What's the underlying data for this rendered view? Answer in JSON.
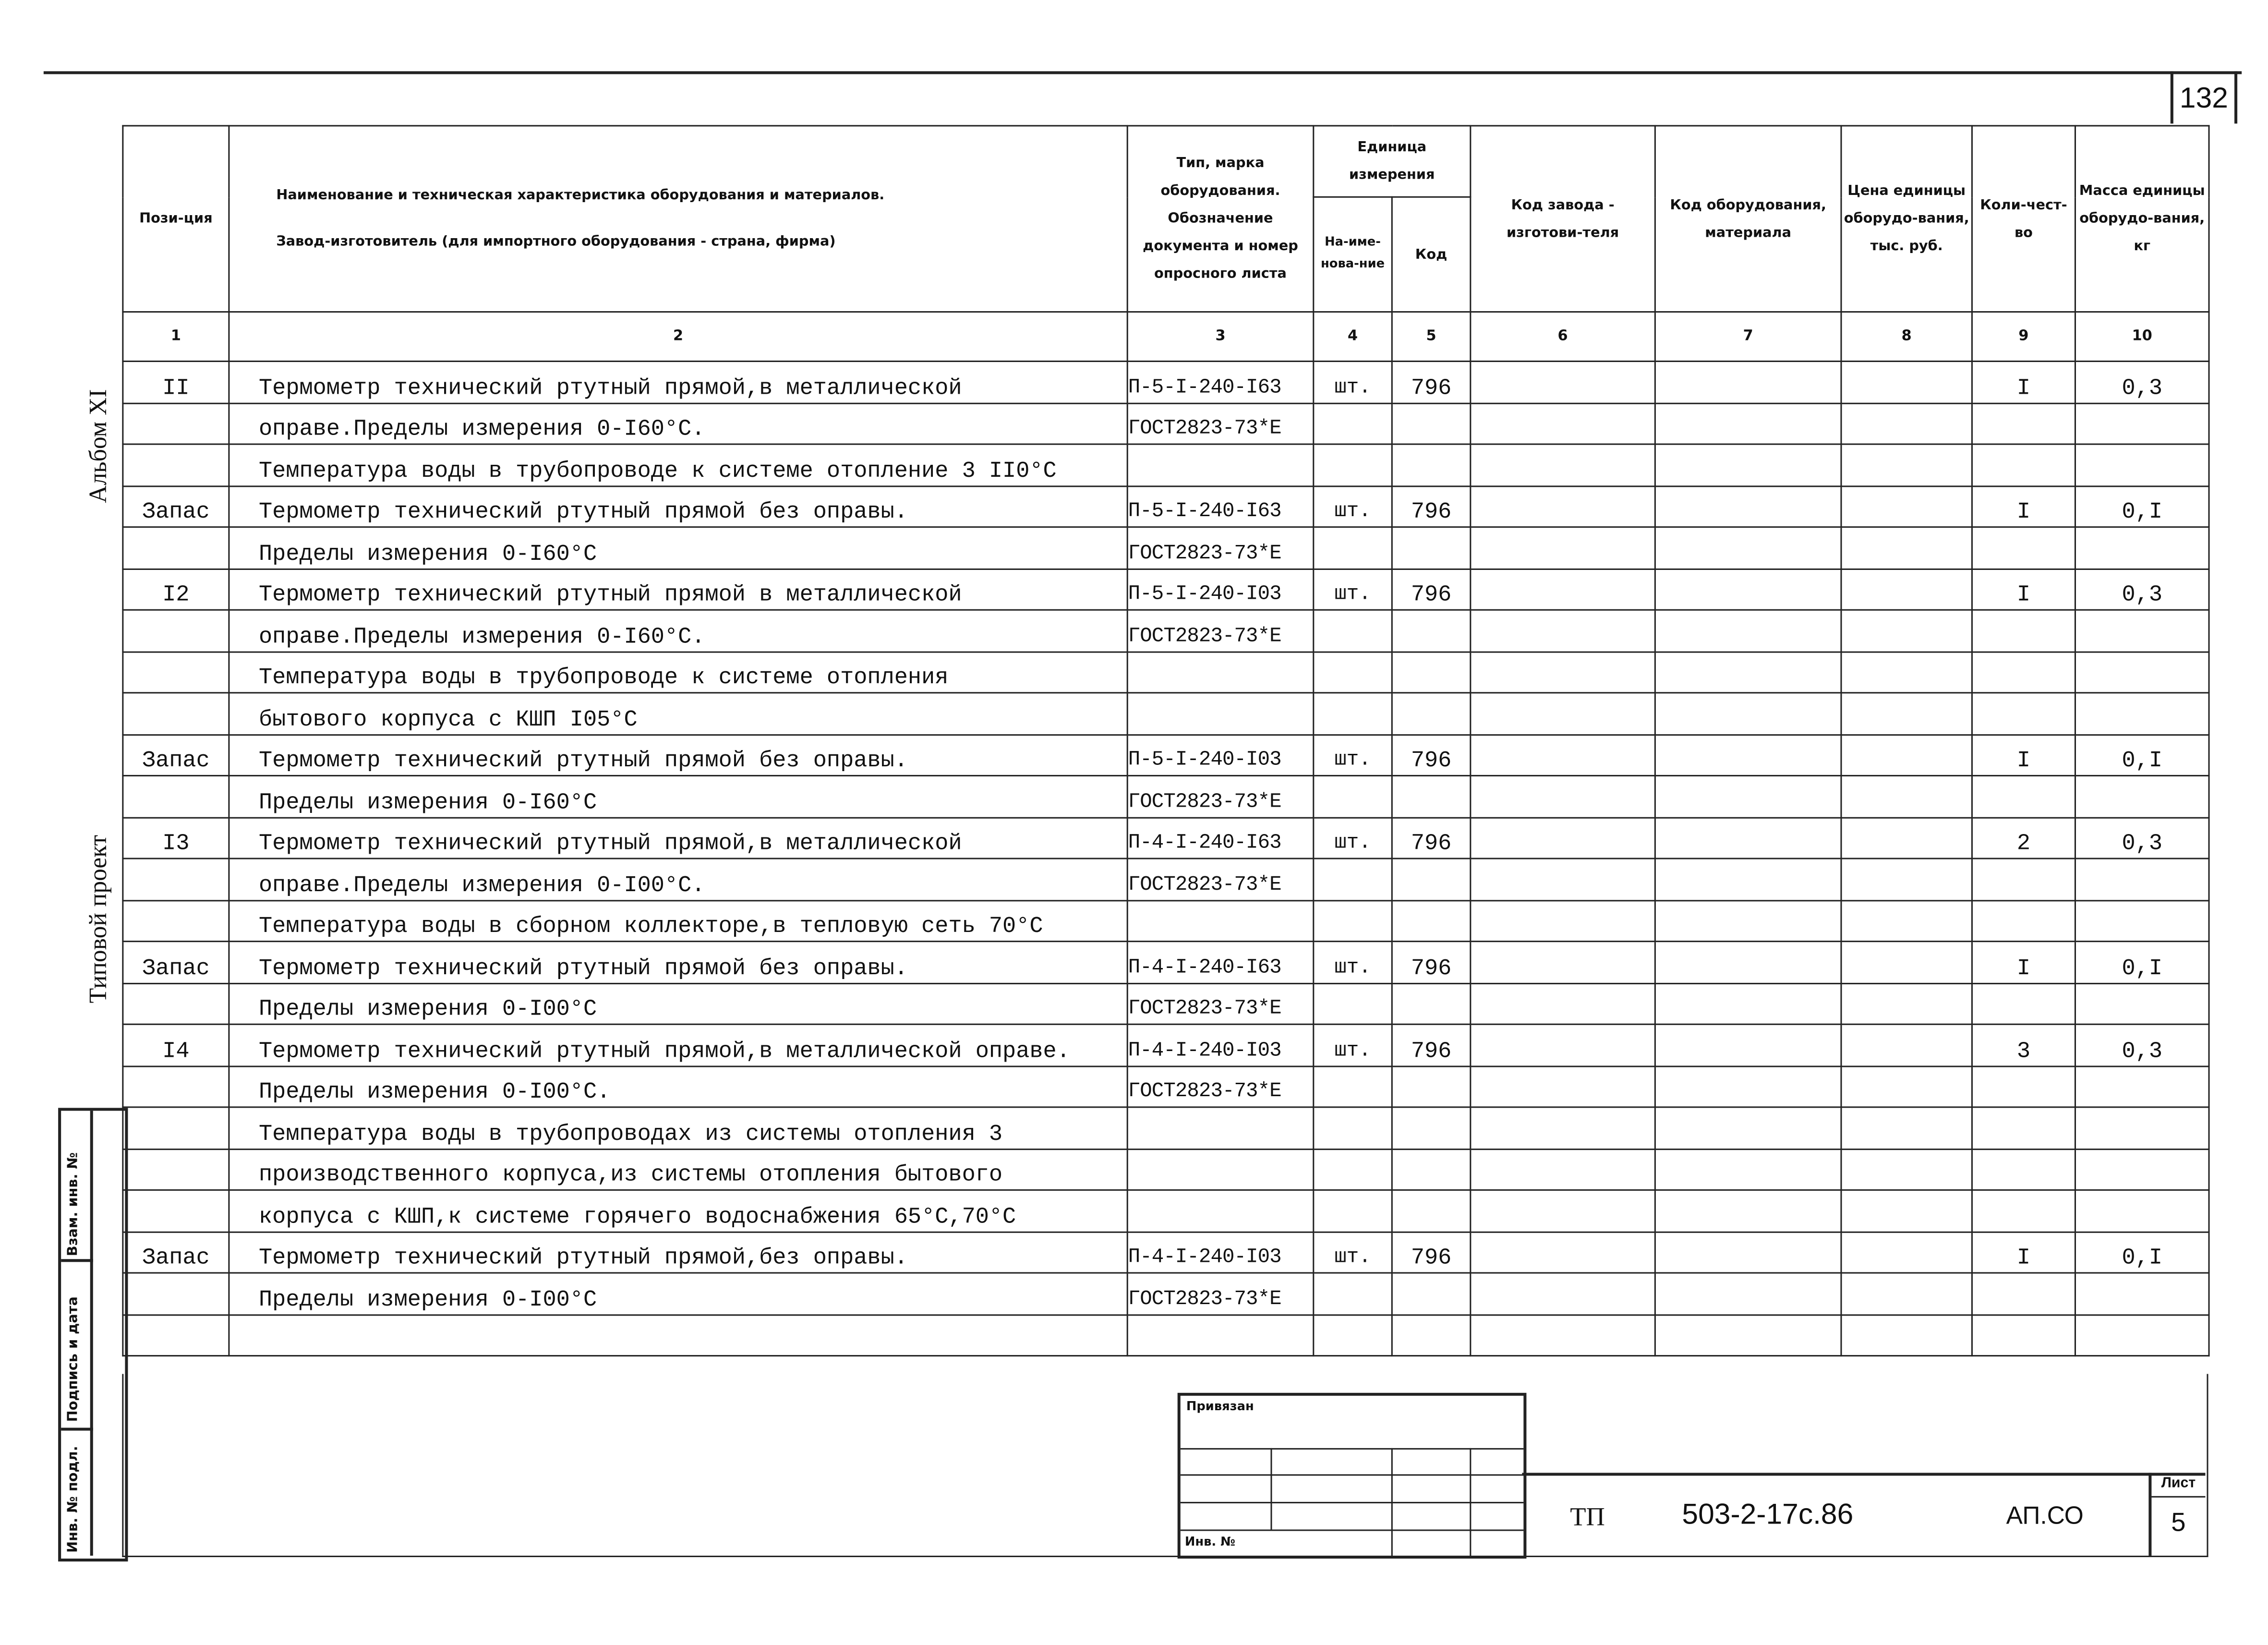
{
  "sheet_number": "132",
  "side_labels": {
    "album": "Альбом XI",
    "project": "Типовой проект"
  },
  "header": {
    "col1": "Пози-ция",
    "col2_line1": "Наименование и техническая характеристика оборудования и материалов.",
    "col2_line2": "Завод-изготовитель (для импортного оборудования - страна, фирма)",
    "col3": "Тип, марка оборудования. Обозначение документа и номер опросного листа",
    "unit_group": "Единица измерения",
    "col4": "На-име-нова-ние",
    "col5": "Код",
    "col6": "Код завода - изготови-теля",
    "col7": "Код оборудования, материала",
    "col8": "Цена единицы оборудо-вания, тыс. руб.",
    "col9": "Коли-чест-во",
    "col10": "Масса единицы оборудо-вания, кг"
  },
  "column_numbers": [
    "1",
    "2",
    "3",
    "4",
    "5",
    "6",
    "7",
    "8",
    "9",
    "10"
  ],
  "rows": [
    {
      "pos": "II",
      "name": "Термометр технический ртутный прямой,в металлической",
      "type": "П-5-I-240-I63",
      "unit": "шт.",
      "code": "796",
      "qty": "I",
      "mass": "0,3"
    },
    {
      "pos": "",
      "name": "оправе.Пределы измерения 0-I60°C.",
      "type": "ГОСТ2823-73*Е",
      "unit": "",
      "code": "",
      "qty": "",
      "mass": ""
    },
    {
      "pos": "",
      "name": "Температура воды в трубопроводе к системе отопление 3  II0°C",
      "type": "",
      "unit": "",
      "code": "",
      "qty": "",
      "mass": ""
    },
    {
      "pos": "Запас",
      "name": "Термометр технический ртутный прямой без оправы.",
      "type": "П-5-I-240-I63",
      "unit": "шт.",
      "code": "796",
      "qty": "I",
      "mass": "0,I"
    },
    {
      "pos": "",
      "name": "Пределы измерения 0-I60°C",
      "type": "ГОСТ2823-73*Е",
      "unit": "",
      "code": "",
      "qty": "",
      "mass": ""
    },
    {
      "pos": "I2",
      "name": "Термометр технический ртутный прямой в металлической",
      "type": "П-5-I-240-I03",
      "unit": "шт.",
      "code": "796",
      "qty": "I",
      "mass": "0,3"
    },
    {
      "pos": "",
      "name": "оправе.Пределы измерения 0-I60°C.",
      "type": "ГОСТ2823-73*Е",
      "unit": "",
      "code": "",
      "qty": "",
      "mass": ""
    },
    {
      "pos": "",
      "name": "Температура воды в трубопроводе к системе отопления",
      "type": "",
      "unit": "",
      "code": "",
      "qty": "",
      "mass": ""
    },
    {
      "pos": "",
      "name": "бытового корпуса с КШП I05°C",
      "type": "",
      "unit": "",
      "code": "",
      "qty": "",
      "mass": ""
    },
    {
      "pos": "Запас",
      "name": "Термометр технический ртутный прямой без оправы.",
      "type": "П-5-I-240-I03",
      "unit": "шт.",
      "code": "796",
      "qty": "I",
      "mass": "0,I"
    },
    {
      "pos": "",
      "name": "Пределы измерения 0-I60°C",
      "type": "ГОСТ2823-73*Е",
      "unit": "",
      "code": "",
      "qty": "",
      "mass": ""
    },
    {
      "pos": "I3",
      "name": "Термометр технический ртутный прямой,в металлической",
      "type": "П-4-I-240-I63",
      "unit": "шт.",
      "code": "796",
      "qty": "2",
      "mass": "0,3"
    },
    {
      "pos": "",
      "name": "оправе.Пределы измерения 0-I00°C.",
      "type": "ГОСТ2823-73*Е",
      "unit": "",
      "code": "",
      "qty": "",
      "mass": ""
    },
    {
      "pos": "",
      "name": "Температура воды в сборном коллекторе,в тепловую сеть 70°C",
      "type": "",
      "unit": "",
      "code": "",
      "qty": "",
      "mass": ""
    },
    {
      "pos": "Запас",
      "name": "Термометр технический ртутный прямой без оправы.",
      "type": "П-4-I-240-I63",
      "unit": "шт.",
      "code": "796",
      "qty": "I",
      "mass": "0,I"
    },
    {
      "pos": "",
      "name": "Пределы измерения 0-I00°C",
      "type": "ГОСТ2823-73*Е",
      "unit": "",
      "code": "",
      "qty": "",
      "mass": ""
    },
    {
      "pos": "I4",
      "name": "Термометр технический ртутный прямой,в металлической оправе.",
      "type": "П-4-I-240-I03",
      "unit": "шт.",
      "code": "796",
      "qty": "3",
      "mass": "0,3"
    },
    {
      "pos": "",
      "name": "Пределы измерения 0-I00°C.",
      "type": "ГОСТ2823-73*Е",
      "unit": "",
      "code": "",
      "qty": "",
      "mass": ""
    },
    {
      "pos": "",
      "name": "Температура воды в трубопроводах из системы отопления 3",
      "type": "",
      "unit": "",
      "code": "",
      "qty": "",
      "mass": ""
    },
    {
      "pos": "",
      "name": "производственного корпуса,из системы отопления бытового",
      "type": "",
      "unit": "",
      "code": "",
      "qty": "",
      "mass": ""
    },
    {
      "pos": "",
      "name": "корпуса с КШП,к системе горячего водоснабжения 65°C,70°C",
      "type": "",
      "unit": "",
      "code": "",
      "qty": "",
      "mass": ""
    },
    {
      "pos": "Запас",
      "name": "Термометр технический ртутный прямой,без оправы.",
      "type": "П-4-I-240-I03",
      "unit": "шт.",
      "code": "796",
      "qty": "I",
      "mass": "0,I"
    },
    {
      "pos": "",
      "name": "Пределы измерения 0-I00°C",
      "type": "ГОСТ2823-73*Е",
      "unit": "",
      "code": "",
      "qty": "",
      "mass": ""
    },
    {
      "pos": "",
      "name": "",
      "type": "",
      "unit": "",
      "code": "",
      "qty": "",
      "mass": ""
    }
  ],
  "left_strip": {
    "ref_inv": "Взам. инв. №",
    "sign_date": "Подпись и дата",
    "inv_orig": "Инв. № подл."
  },
  "stamp": {
    "attached": "Привязан",
    "inv_no": "Инв. №"
  },
  "title_block": {
    "prefix": "ТП",
    "code": "503-2-17с.86",
    "section": "АП.СО",
    "sheet_label": "Лист",
    "sheet": "5"
  }
}
